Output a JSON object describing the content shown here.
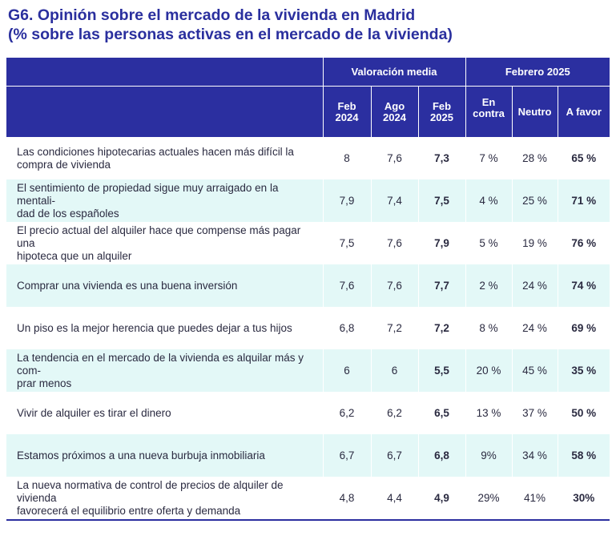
{
  "title_line1": "G6. Opinión sobre el mercado de la vivienda en Madrid",
  "title_line2": "(% sobre las personas activas en el mercado de la vivienda)",
  "headers": {
    "group_valoracion": "Valoración media",
    "group_febrero": "Febrero 2025",
    "columns": [
      {
        "top": "Feb",
        "bottom": "2024"
      },
      {
        "top": "Ago",
        "bottom": "2024"
      },
      {
        "top": "Feb",
        "bottom": "2025"
      },
      {
        "top": "En",
        "bottom": "contra"
      },
      {
        "top": "Neutro",
        "bottom": ""
      },
      {
        "top": "A favor",
        "bottom": ""
      }
    ]
  },
  "rows": [
    {
      "l1": "Las condiciones hipotecarias actuales hacen más difícil la",
      "l2": "compra de vivienda",
      "feb2024": "8",
      "ago2024": "7,6",
      "feb2025": "7,3",
      "contra": "7 %",
      "neutro": "28 %",
      "favor": "65 %"
    },
    {
      "l1": "El sentimiento de propiedad sigue muy arraigado en la mentali-",
      "l2": "dad de los españoles",
      "feb2024": "7,9",
      "ago2024": "7,4",
      "feb2025": "7,5",
      "contra": "4 %",
      "neutro": "25 %",
      "favor": "71 %"
    },
    {
      "l1": "El precio actual del alquiler hace que compense más pagar una",
      "l2": "hipoteca que un alquiler",
      "feb2024": "7,5",
      "ago2024": "7,6",
      "feb2025": "7,9",
      "contra": "5 %",
      "neutro": "19 %",
      "favor": "76 %"
    },
    {
      "l1": "Comprar una vivienda es una buena inversión",
      "l2": "",
      "feb2024": "7,6",
      "ago2024": "7,6",
      "feb2025": "7,7",
      "contra": "2 %",
      "neutro": "24 %",
      "favor": "74 %"
    },
    {
      "l1": "Un piso es la mejor herencia que puedes dejar a tus hijos",
      "l2": "",
      "feb2024": "6,8",
      "ago2024": "7,2",
      "feb2025": "7,2",
      "contra": "8 %",
      "neutro": "24 %",
      "favor": "69 %"
    },
    {
      "l1": "La tendencia en el mercado de la vivienda es alquilar más y com-",
      "l2": "prar menos",
      "feb2024": "6",
      "ago2024": "6",
      "feb2025": "5,5",
      "contra": "20 %",
      "neutro": "45 %",
      "favor": "35 %"
    },
    {
      "l1": "Vivir de alquiler es tirar el dinero",
      "l2": "",
      "feb2024": "6,2",
      "ago2024": "6,2",
      "feb2025": "6,5",
      "contra": "13 %",
      "neutro": "37 %",
      "favor": "50 %"
    },
    {
      "l1": "Estamos próximos a una nueva burbuja inmobiliaria",
      "l2": "",
      "feb2024": "6,7",
      "ago2024": "6,7",
      "feb2025": "6,8",
      "contra": "9%",
      "neutro": "34 %",
      "favor": "58 %"
    },
    {
      "l1": "La nueva normativa de control de precios de alquiler de vivienda",
      "l2": "favorecerá el equilibrio entre oferta y demanda",
      "feb2024": "4,8",
      "ago2024": "4,4",
      "feb2025": "4,9",
      "contra": "29%",
      "neutro": "41%",
      "favor": "30%"
    }
  ]
}
